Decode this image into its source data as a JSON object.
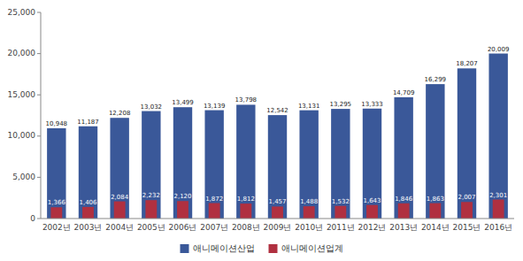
{
  "chart_data": {
    "type": "bar",
    "categories": [
      "2002년",
      "2003년",
      "2004년",
      "2005년",
      "2006년",
      "2007년",
      "2008년",
      "2009년",
      "2010년",
      "2011년",
      "2012년",
      "2013년",
      "2014년",
      "2015년",
      "2016년"
    ],
    "series": [
      {
        "name": "애니메이션산업",
        "color": "#3A5899",
        "values": [
          10948,
          11187,
          12208,
          13032,
          13499,
          13139,
          13798,
          12542,
          13131,
          13295,
          13333,
          14709,
          16299,
          18207,
          20009
        ],
        "value_labels": [
          "10,948",
          "11,187",
          "12,208",
          "13,032",
          "13,499",
          "13,139",
          "13,798",
          "12,542",
          "13,131",
          "13,295",
          "13,333",
          "14,709",
          "16,299",
          "18,207",
          "20,009"
        ]
      },
      {
        "name": "애니메이션업계",
        "color": "#B03040",
        "values": [
          1366,
          1406,
          2084,
          2232,
          2120,
          1872,
          1812,
          1457,
          1488,
          1532,
          1643,
          1846,
          1863,
          2007,
          2301
        ],
        "value_labels": [
          "1,366",
          "1,406",
          "2,084",
          "2,232",
          "2,120",
          "1,872",
          "1,812",
          "1,457",
          "1,488",
          "1,532",
          "1,643",
          "1,846",
          "1,863",
          "2,007",
          "2,301"
        ]
      }
    ],
    "ylim": [
      0,
      25000
    ],
    "yticks": [
      0,
      {
        "value": 5000,
        "label": "5,000"
      },
      {
        "value": 10000,
        "label": "10,000"
      },
      {
        "value": 15000,
        "label": "15,000"
      },
      {
        "value": 20000,
        "label": "20,000"
      },
      {
        "value": 25000,
        "label": "25,000"
      }
    ],
    "data_labels": true,
    "grid": false,
    "legend": "bottom"
  }
}
